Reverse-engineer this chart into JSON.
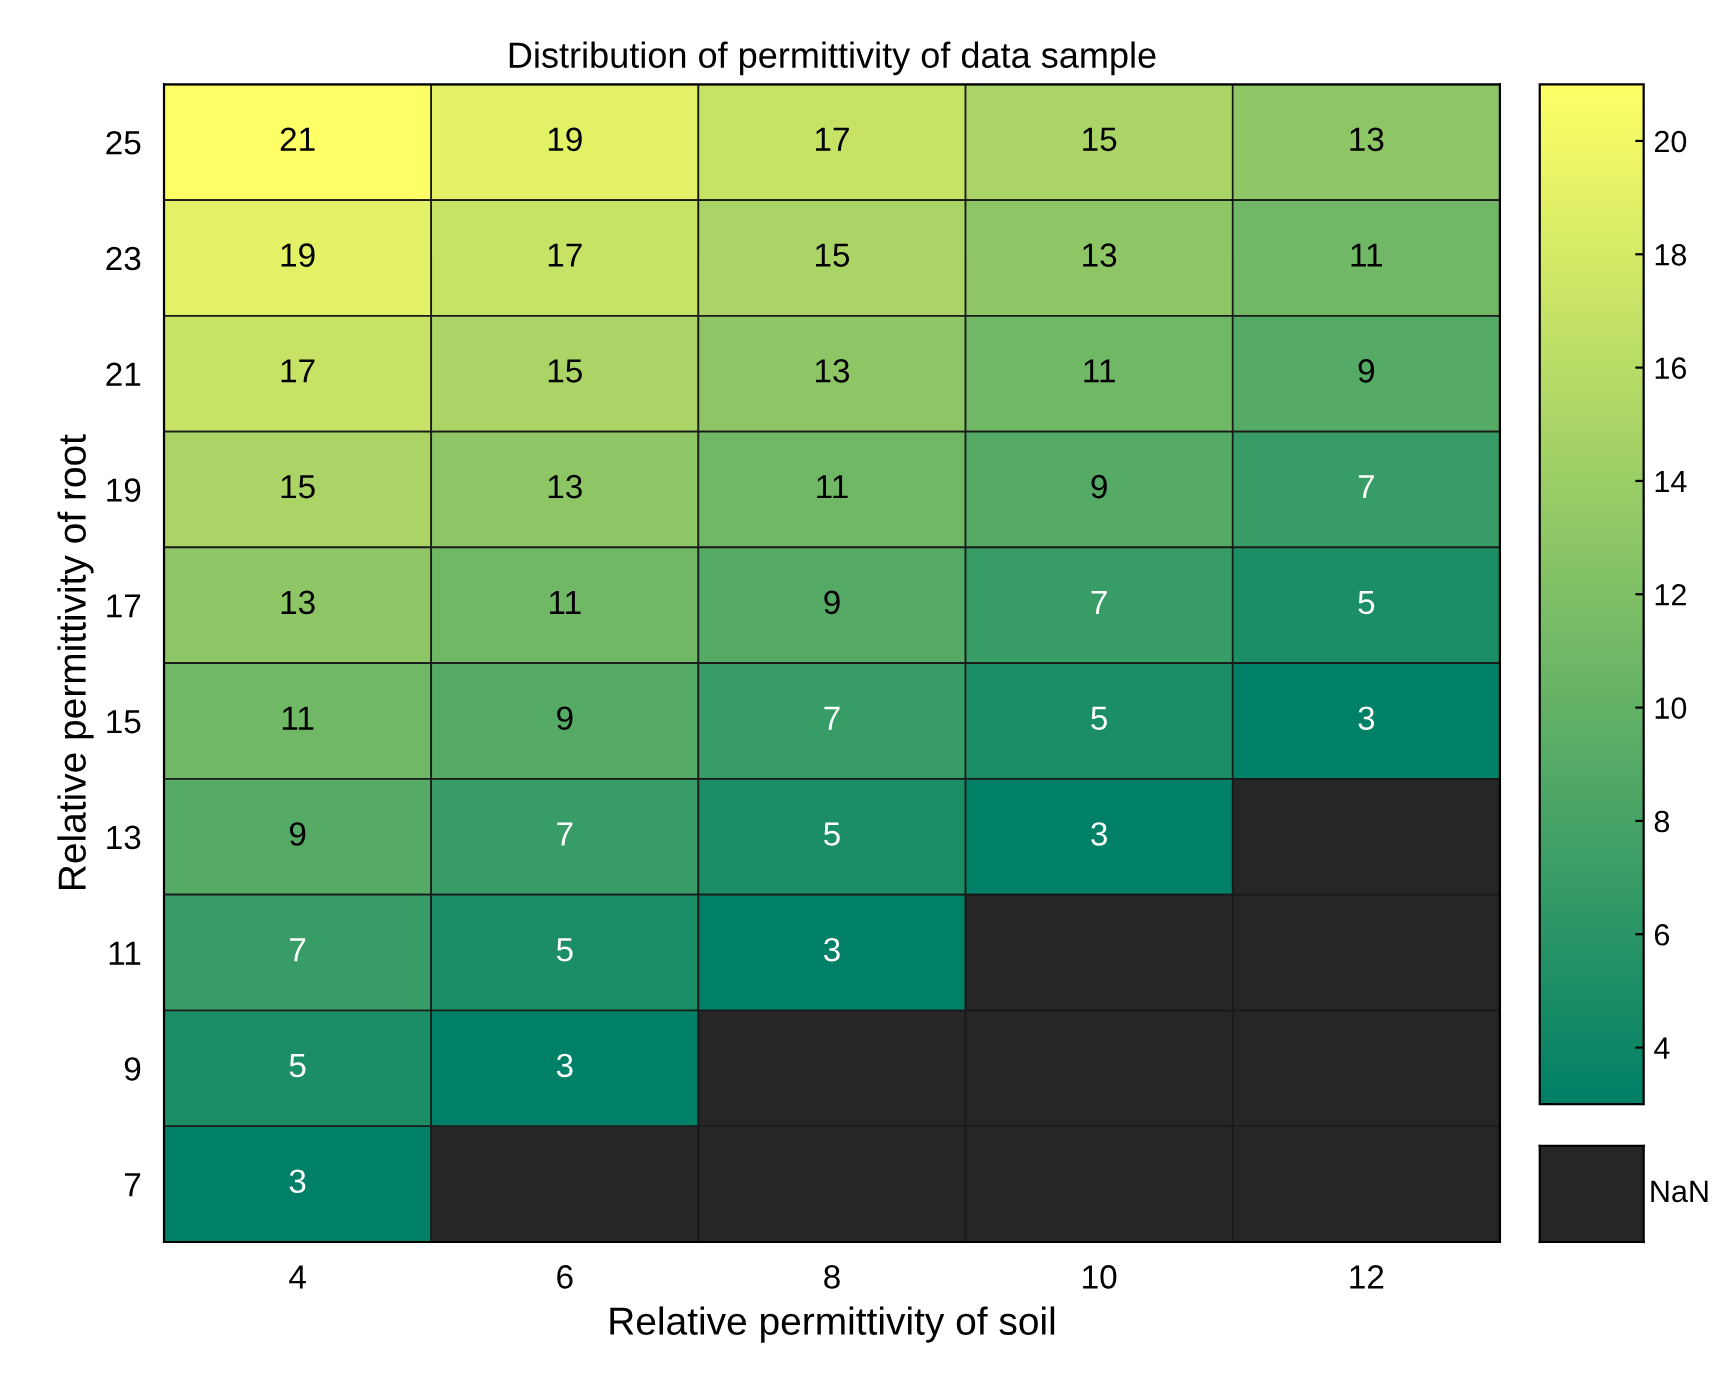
{
  "chart_data": {
    "type": "heatmap",
    "title": "Distribution of permittivity of data sample",
    "xlabel": "Relative permittivity of soil",
    "ylabel": "Relative permittivity of root",
    "categories": [
      "4",
      "6",
      "8",
      "10",
      "12"
    ],
    "y_categories": [
      "25",
      "23",
      "21",
      "19",
      "17",
      "15",
      "13",
      "11",
      "9",
      "7"
    ],
    "cells": [
      [
        21,
        19,
        17,
        15,
        13
      ],
      [
        19,
        17,
        15,
        13,
        11
      ],
      [
        17,
        15,
        13,
        11,
        9
      ],
      [
        15,
        13,
        11,
        9,
        7
      ],
      [
        13,
        11,
        9,
        7,
        5
      ],
      [
        11,
        9,
        7,
        5,
        3
      ],
      [
        9,
        7,
        5,
        3,
        null
      ],
      [
        7,
        5,
        3,
        null,
        null
      ],
      [
        5,
        3,
        null,
        null,
        null
      ],
      [
        3,
        null,
        null,
        null,
        null
      ]
    ],
    "clim": [
      3,
      21
    ],
    "cticks": [
      4,
      6,
      8,
      10,
      12,
      14,
      16,
      18,
      20
    ],
    "data_labels": true,
    "annotations": [
      "NaN"
    ]
  }
}
